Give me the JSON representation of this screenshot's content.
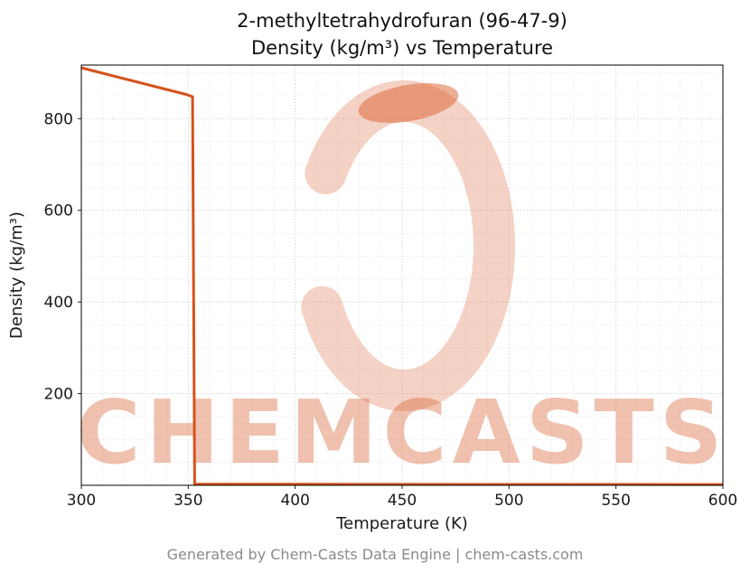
{
  "title": {
    "line1": "2-methyltetrahydrofuran (96-47-9)",
    "line2": "Density (kg/m³) vs Temperature"
  },
  "footer": {
    "text": "Generated by Chem-Casts Data Engine | chem-casts.com"
  },
  "watermark": {
    "text": "CHEMCASTS",
    "color": "#d95f30",
    "text_opacity": 0.38,
    "logo_opacity": 0.28,
    "blob_opacity": 0.5
  },
  "chart_data": {
    "type": "line",
    "title": "2-methyltetrahydrofuran (96-47-9) — Density (kg/m³) vs Temperature",
    "xlabel": "Temperature (K)",
    "ylabel": "Density (kg/m³)",
    "xlim": [
      300,
      600
    ],
    "ylim": [
      0,
      917
    ],
    "xticks": [
      300,
      350,
      400,
      450,
      500,
      550,
      600
    ],
    "yticks": [
      200,
      400,
      600,
      800
    ],
    "x_minor_step": 10,
    "y_minor_step": 50,
    "grid": true,
    "legend": false,
    "line_color": "#d4531c",
    "line_width": 3,
    "series": [
      {
        "name": "Density",
        "x": [
          300,
          349,
          352,
          353,
          400,
          450,
          500,
          550,
          600
        ],
        "y": [
          911,
          853,
          848,
          2.5,
          2.4,
          2.2,
          2.0,
          1.9,
          1.8
        ]
      }
    ]
  }
}
